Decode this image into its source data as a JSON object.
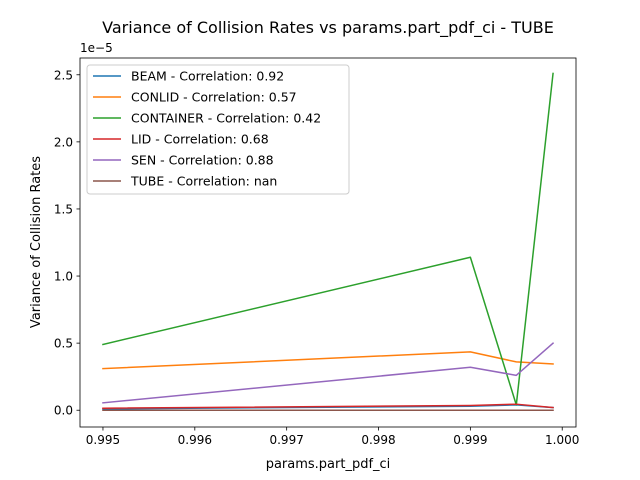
{
  "chart_data": {
    "type": "line",
    "title": "Variance of Collision Rates vs params.part_pdf_ci - TUBE",
    "xlabel": "params.part_pdf_ci",
    "ylabel": "Variance of Collision Rates",
    "offset_label": "1e−5",
    "xlim": [
      0.99475,
      1.00015
    ],
    "ylim": [
      -0.125,
      2.625
    ],
    "grid": false,
    "legend_position": "top-left",
    "x_ticks": [
      0.995,
      0.996,
      0.997,
      0.998,
      0.999,
      1.0
    ],
    "x_tick_labels": [
      "0.995",
      "0.996",
      "0.997",
      "0.998",
      "0.999",
      "1.000"
    ],
    "y_ticks": [
      0.0,
      0.5,
      1.0,
      1.5,
      2.0,
      2.5
    ],
    "y_tick_labels": [
      "0.0",
      "0.5",
      "1.0",
      "1.5",
      "2.0",
      "2.5"
    ],
    "x": [
      0.995,
      0.999,
      0.9995,
      0.9999
    ],
    "series": [
      {
        "name": "BEAM",
        "legend": "BEAM - Correlation: 0.92",
        "color": "#1f77b4",
        "values": [
          0.01,
          0.03,
          0.04,
          0.02
        ]
      },
      {
        "name": "CONLID",
        "legend": "CONLID - Correlation: 0.57",
        "color": "#ff7f0e",
        "values": [
          0.31,
          0.435,
          0.36,
          0.345
        ]
      },
      {
        "name": "CONTAINER",
        "legend": "CONTAINER - Correlation: 0.42",
        "color": "#2ca02c",
        "values": [
          0.49,
          1.14,
          0.04,
          2.51
        ]
      },
      {
        "name": "LID",
        "legend": "LID - Correlation: 0.68",
        "color": "#d62728",
        "values": [
          0.015,
          0.035,
          0.045,
          0.02
        ]
      },
      {
        "name": "SEN",
        "legend": "SEN - Correlation: 0.88",
        "color": "#9467bd",
        "values": [
          0.055,
          0.32,
          0.26,
          0.5
        ]
      },
      {
        "name": "TUBE",
        "legend": "TUBE - Correlation: nan",
        "color": "#8c564b",
        "values": [
          0.0,
          0.0,
          0.0,
          0.0
        ]
      }
    ]
  }
}
